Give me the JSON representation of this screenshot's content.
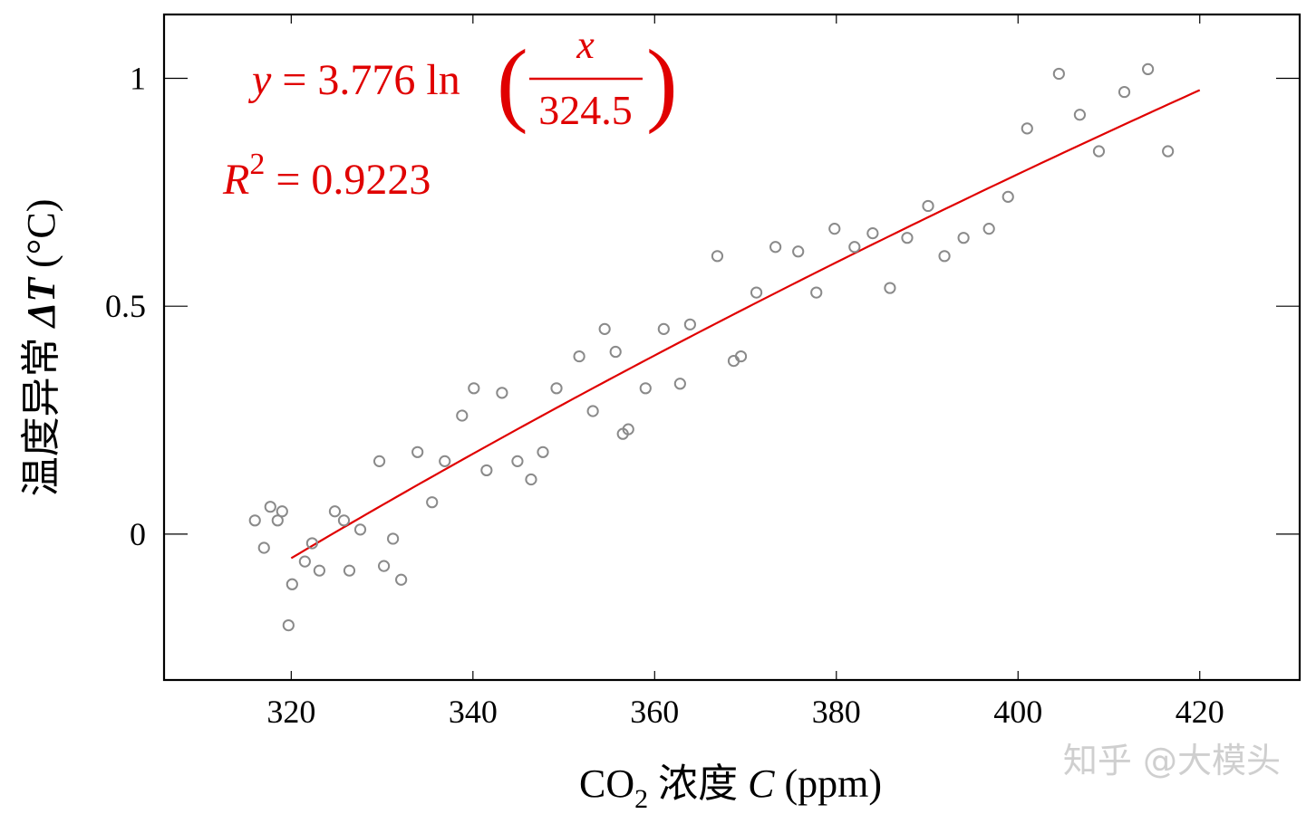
{
  "chart_data": {
    "type": "scatter",
    "xlabel": {
      "prefix": "CO",
      "sub": "2",
      "mid": " 浓度 ",
      "var": "C",
      "unit": " (ppm)"
    },
    "ylabel": {
      "prefix": "温度异常 ",
      "var": "ΔT",
      "unit": " (°C)"
    },
    "xlim": [
      306,
      431
    ],
    "ylim": [
      -0.32,
      1.14
    ],
    "x_ticks": [
      320,
      340,
      360,
      380,
      400,
      420
    ],
    "y_ticks": [
      0,
      0.5,
      1
    ],
    "x_tick_labels": [
      "320",
      "340",
      "360",
      "380",
      "400",
      "420"
    ],
    "y_tick_labels": [
      "0",
      "0.5",
      "1"
    ],
    "grid": false,
    "series": [
      {
        "kind": "points",
        "color": "#8a8a8a",
        "marker": "open-circle",
        "x": [
          316.0,
          317.0,
          317.7,
          318.5,
          319.0,
          319.7,
          320.1,
          321.5,
          322.3,
          323.1,
          324.8,
          325.8,
          326.4,
          327.6,
          329.7,
          330.2,
          331.2,
          332.1,
          333.9,
          335.5,
          336.9,
          338.8,
          340.1,
          341.5,
          343.2,
          344.9,
          346.4,
          347.7,
          349.2,
          351.7,
          353.2,
          354.5,
          355.7,
          356.5,
          357.1,
          359.0,
          361.0,
          362.8,
          363.9,
          366.9,
          368.7,
          369.5,
          371.2,
          373.3,
          375.8,
          377.8,
          379.8,
          382.0,
          384.0,
          385.9,
          387.8,
          390.1,
          391.9,
          394.0,
          396.8,
          398.9,
          401.0,
          404.5,
          406.8,
          408.9,
          411.7,
          414.3,
          416.5
        ],
        "y": [
          0.03,
          -0.03,
          0.06,
          0.03,
          0.05,
          -0.2,
          -0.11,
          -0.06,
          -0.02,
          -0.08,
          0.05,
          0.03,
          -0.08,
          0.01,
          0.16,
          -0.07,
          -0.01,
          -0.1,
          0.18,
          0.07,
          0.16,
          0.26,
          0.32,
          0.14,
          0.31,
          0.16,
          0.12,
          0.18,
          0.32,
          0.39,
          0.27,
          0.45,
          0.4,
          0.22,
          0.23,
          0.32,
          0.45,
          0.33,
          0.46,
          0.61,
          0.38,
          0.39,
          0.53,
          0.63,
          0.62,
          0.53,
          0.67,
          0.63,
          0.66,
          0.54,
          0.65,
          0.72,
          0.61,
          0.65,
          0.67,
          0.74,
          0.89,
          1.01,
          0.92,
          0.84,
          0.97,
          1.02,
          0.84
        ]
      },
      {
        "kind": "fit",
        "color": "#e00000",
        "model": "y = 3.776 ln(x / 324.5)",
        "coef": 3.776,
        "ref": 324.5,
        "x_range": [
          320,
          420
        ]
      }
    ],
    "annotations": {
      "equation": {
        "lhs": "y",
        "eq": " = 3.776 ln",
        "numerator": "x",
        "denominator": "324.5"
      },
      "r2": {
        "var": "R",
        "sup": "2",
        "value": " = 0.9223"
      }
    }
  },
  "watermark": "知乎 @大模头"
}
